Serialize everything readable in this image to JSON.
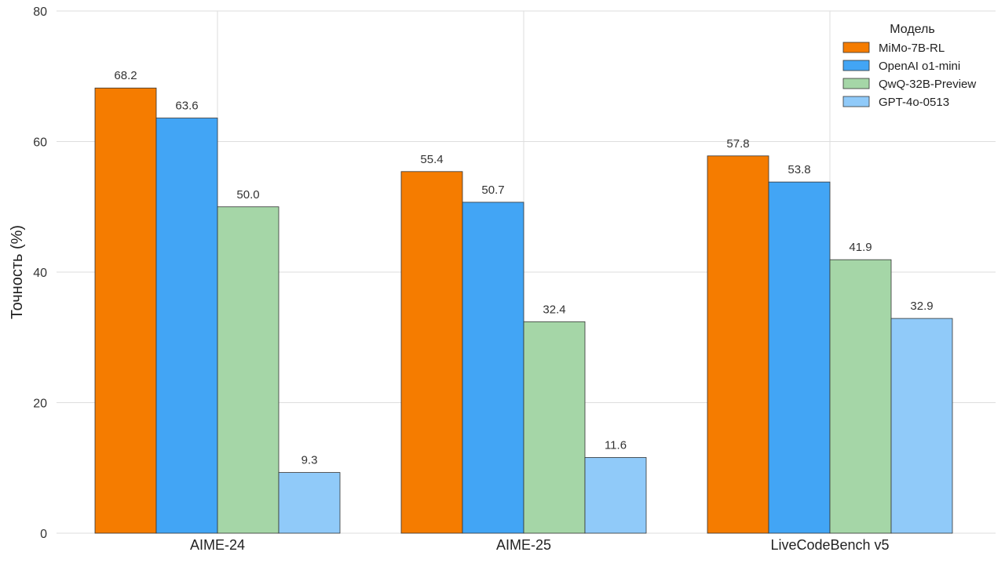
{
  "chart_data": {
    "type": "bar",
    "title": "",
    "xlabel": "",
    "ylabel": "Точность (%)",
    "ylim": [
      0,
      80
    ],
    "yticks": [
      0,
      20,
      40,
      60,
      80
    ],
    "grid": true,
    "legend": {
      "title": "Модель",
      "position": "top-right"
    },
    "categories": [
      "AIME-24",
      "AIME-25",
      "LiveCodeBench v5"
    ],
    "series": [
      {
        "name": "MiMo-7B-RL",
        "color": "#f57c00",
        "values": [
          68.2,
          55.4,
          57.8
        ],
        "labels": [
          "68.2",
          "55.4",
          "57.8"
        ]
      },
      {
        "name": "OpenAI o1-mini",
        "color": "#42a5f5",
        "values": [
          63.6,
          50.7,
          53.8
        ],
        "labels": [
          "63.6",
          "50.7",
          "53.8"
        ]
      },
      {
        "name": "QwQ-32B-Preview",
        "color": "#a5d6a7",
        "values": [
          50.0,
          32.4,
          41.9
        ],
        "labels": [
          "50.0",
          "32.4",
          "41.9"
        ]
      },
      {
        "name": "GPT-4o-0513",
        "color": "#90caf9",
        "values": [
          9.3,
          11.6,
          32.9
        ],
        "labels": [
          "9.3",
          "11.6",
          "32.9"
        ]
      }
    ]
  }
}
